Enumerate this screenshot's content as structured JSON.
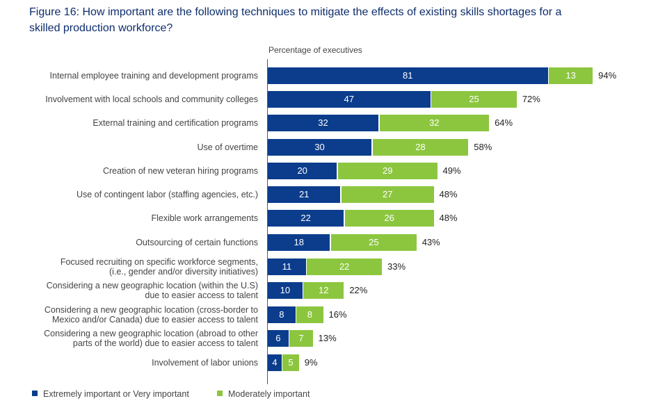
{
  "chart_data": {
    "type": "bar",
    "orientation": "horizontal",
    "stacked": true,
    "title": "Figure 16: How important are the following techniques to mitigate the effects of existing skills shortages for a skilled production workforce?",
    "ylabel": "Percentage of executives",
    "categories": [
      "Internal employee training and development programs",
      "Involvement with local schools and community colleges",
      "External training and certification programs",
      "Use of overtime",
      "Creation of new veteran hiring programs",
      "Use of contingent labor (staffing agencies, etc.)",
      "Flexible work arrangements",
      "Outsourcing of certain functions",
      "Focused recruiting on specific workforce segments,\n(i.e., gender and/or diversity initiatives)",
      "Considering a new geographic location (within the U.S)\ndue to easier access to talent",
      "Considering a new geographic location (cross-border to\nMexico and/or Canada) due to easier access to talent",
      "Considering a new geographic location (abroad to other\nparts of the world) due to easier access to talent",
      "Involvement of labor unions"
    ],
    "series": [
      {
        "name": "Extremely important or Very important",
        "color": "#0b3d8c",
        "values": [
          81,
          47,
          32,
          30,
          20,
          21,
          22,
          18,
          11,
          10,
          8,
          6,
          4
        ]
      },
      {
        "name": "Moderately important",
        "color": "#8cc63f",
        "values": [
          13,
          25,
          32,
          28,
          29,
          27,
          26,
          25,
          22,
          12,
          8,
          7,
          5
        ]
      }
    ],
    "totals": [
      "94%",
      "72%",
      "64%",
      "58%",
      "49%",
      "48%",
      "48%",
      "43%",
      "33%",
      "22%",
      "16%",
      "13%",
      "9%"
    ],
    "legend_position": "bottom-left"
  }
}
